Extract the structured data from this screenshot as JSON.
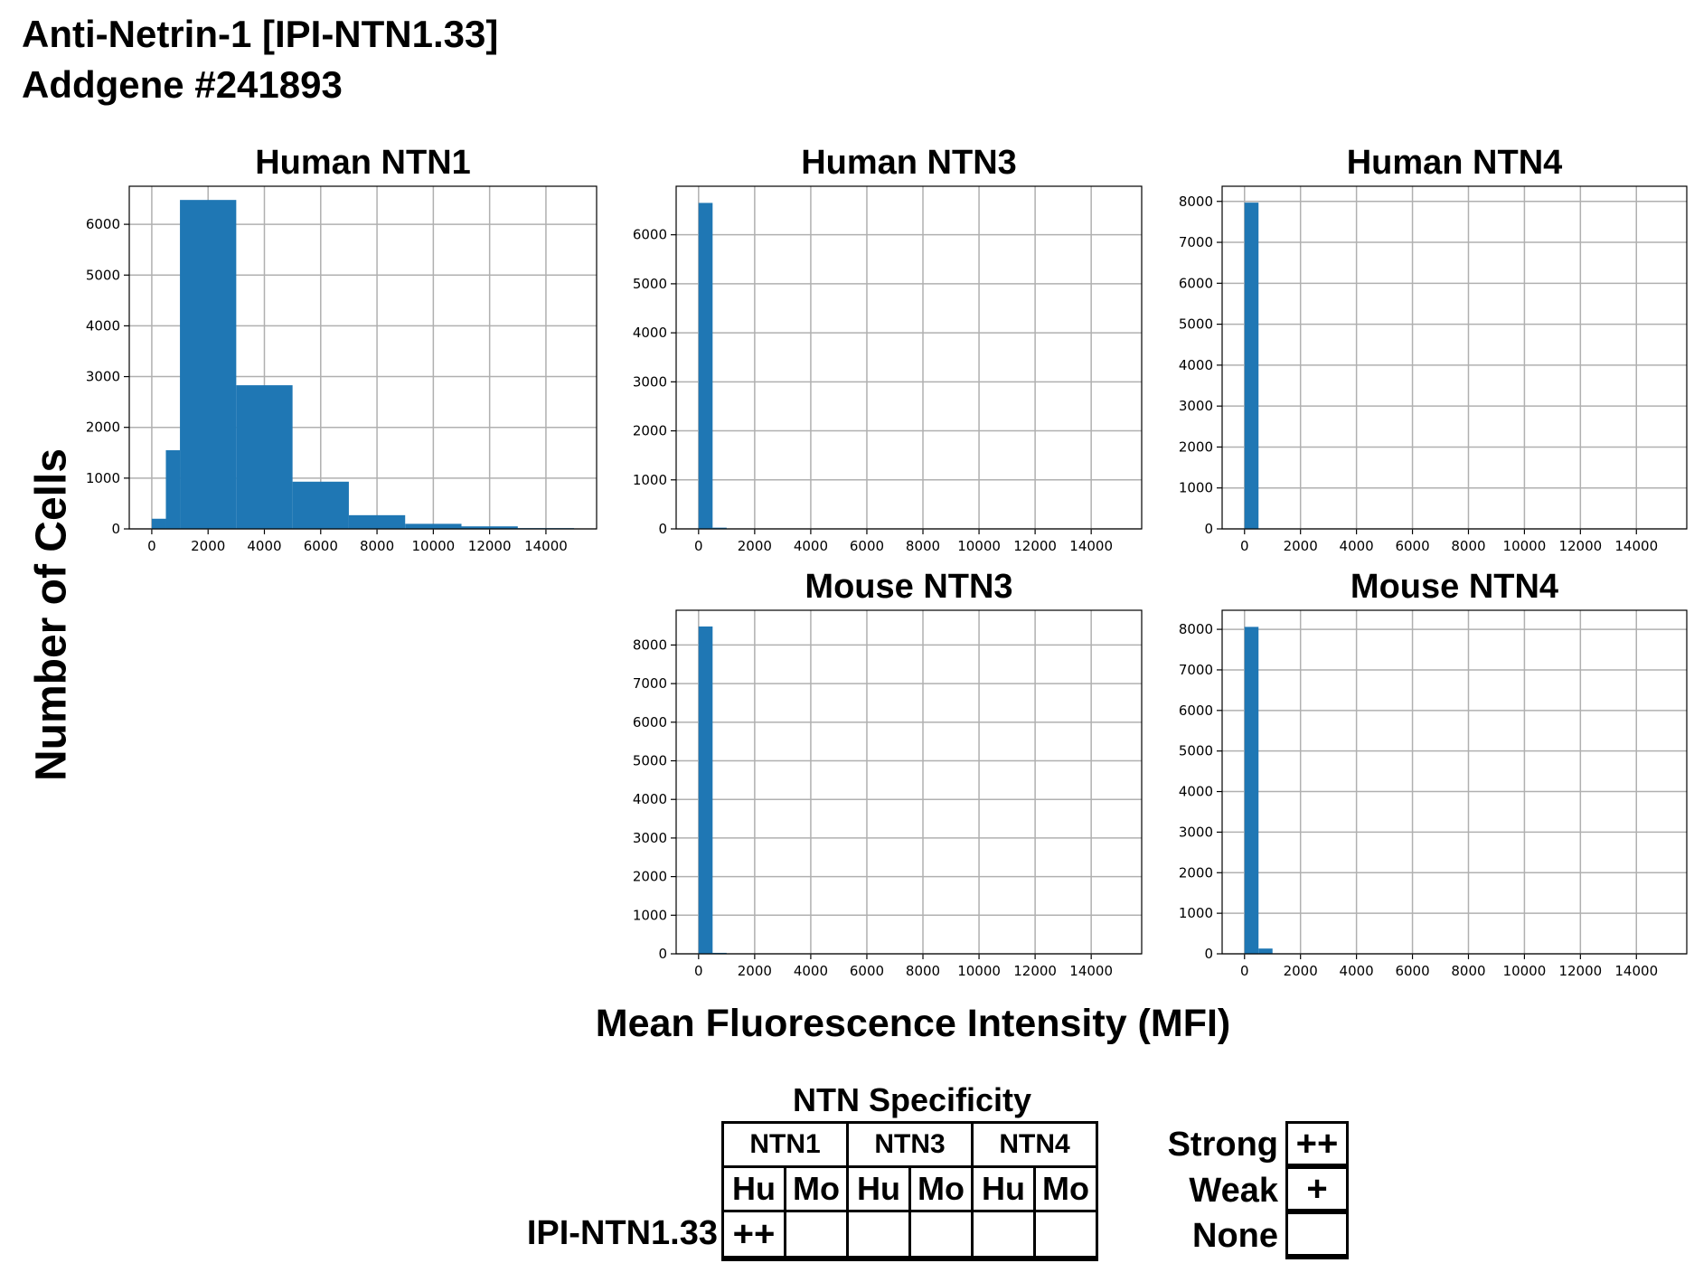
{
  "header": {
    "line1": "Anti-Netrin-1 [IPI-NTN1.33]",
    "line2": "Addgene #241893"
  },
  "axes": {
    "ylabel": "Number of Cells",
    "xlabel": "Mean Fluorescence Intensity (MFI)"
  },
  "colors": {
    "bar": "#1f77b4",
    "grid": "#b0b0b0"
  },
  "chart_data": [
    {
      "type": "bar",
      "title": "Human NTN1",
      "bin_edges": [
        0,
        500,
        1000,
        3000,
        5000,
        7000,
        9000,
        11000,
        13000,
        15000
      ],
      "counts": [
        200,
        1550,
        6480,
        2830,
        930,
        270,
        100,
        50,
        15
      ],
      "xlim": [
        -800,
        15800
      ],
      "ylim": [
        0,
        6750
      ],
      "xticks": [
        0,
        2000,
        4000,
        6000,
        8000,
        10000,
        12000,
        14000
      ],
      "yticks": [
        0,
        1000,
        2000,
        3000,
        4000,
        5000,
        6000
      ],
      "grid": true
    },
    {
      "type": "bar",
      "title": "Human NTN3",
      "bin_edges": [
        0,
        500,
        1000
      ],
      "counts": [
        6650,
        25
      ],
      "xlim": [
        -800,
        15800
      ],
      "ylim": [
        0,
        6990
      ],
      "xticks": [
        0,
        2000,
        4000,
        6000,
        8000,
        10000,
        12000,
        14000
      ],
      "yticks": [
        0,
        1000,
        2000,
        3000,
        4000,
        5000,
        6000
      ],
      "grid": true
    },
    {
      "type": "bar",
      "title": "Human NTN4",
      "bin_edges": [
        0,
        500
      ],
      "counts": [
        7970
      ],
      "xlim": [
        -800,
        15800
      ],
      "ylim": [
        0,
        8370
      ],
      "xticks": [
        0,
        2000,
        4000,
        6000,
        8000,
        10000,
        12000,
        14000
      ],
      "yticks": [
        0,
        1000,
        2000,
        3000,
        4000,
        5000,
        6000,
        7000,
        8000
      ],
      "grid": true
    },
    {
      "type": "bar",
      "title": "Mouse NTN3",
      "bin_edges": [
        0,
        500,
        1000
      ],
      "counts": [
        8480,
        25
      ],
      "xlim": [
        -800,
        15800
      ],
      "ylim": [
        0,
        8900
      ],
      "xticks": [
        0,
        2000,
        4000,
        6000,
        8000,
        10000,
        12000,
        14000
      ],
      "yticks": [
        0,
        1000,
        2000,
        3000,
        4000,
        5000,
        6000,
        7000,
        8000
      ],
      "grid": true
    },
    {
      "type": "bar",
      "title": "Mouse NTN4",
      "bin_edges": [
        0,
        500,
        1000
      ],
      "counts": [
        8060,
        130
      ],
      "xlim": [
        -800,
        15800
      ],
      "ylim": [
        0,
        8470
      ],
      "xticks": [
        0,
        2000,
        4000,
        6000,
        8000,
        10000,
        12000,
        14000
      ],
      "yticks": [
        0,
        1000,
        2000,
        3000,
        4000,
        5000,
        6000,
        7000,
        8000
      ],
      "grid": true
    }
  ],
  "specificity": {
    "title": "NTN Specificity",
    "groups": [
      "NTN1",
      "NTN3",
      "NTN4"
    ],
    "species": [
      "Hu",
      "Mo",
      "Hu",
      "Mo",
      "Hu",
      "Mo"
    ],
    "row_label": "IPI-NTN1.33",
    "values": [
      "++",
      "",
      "",
      "",
      "",
      ""
    ]
  },
  "legend": [
    {
      "label": "Strong",
      "symbol": "++"
    },
    {
      "label": "Weak",
      "symbol": "+"
    },
    {
      "label": "None",
      "symbol": ""
    }
  ]
}
